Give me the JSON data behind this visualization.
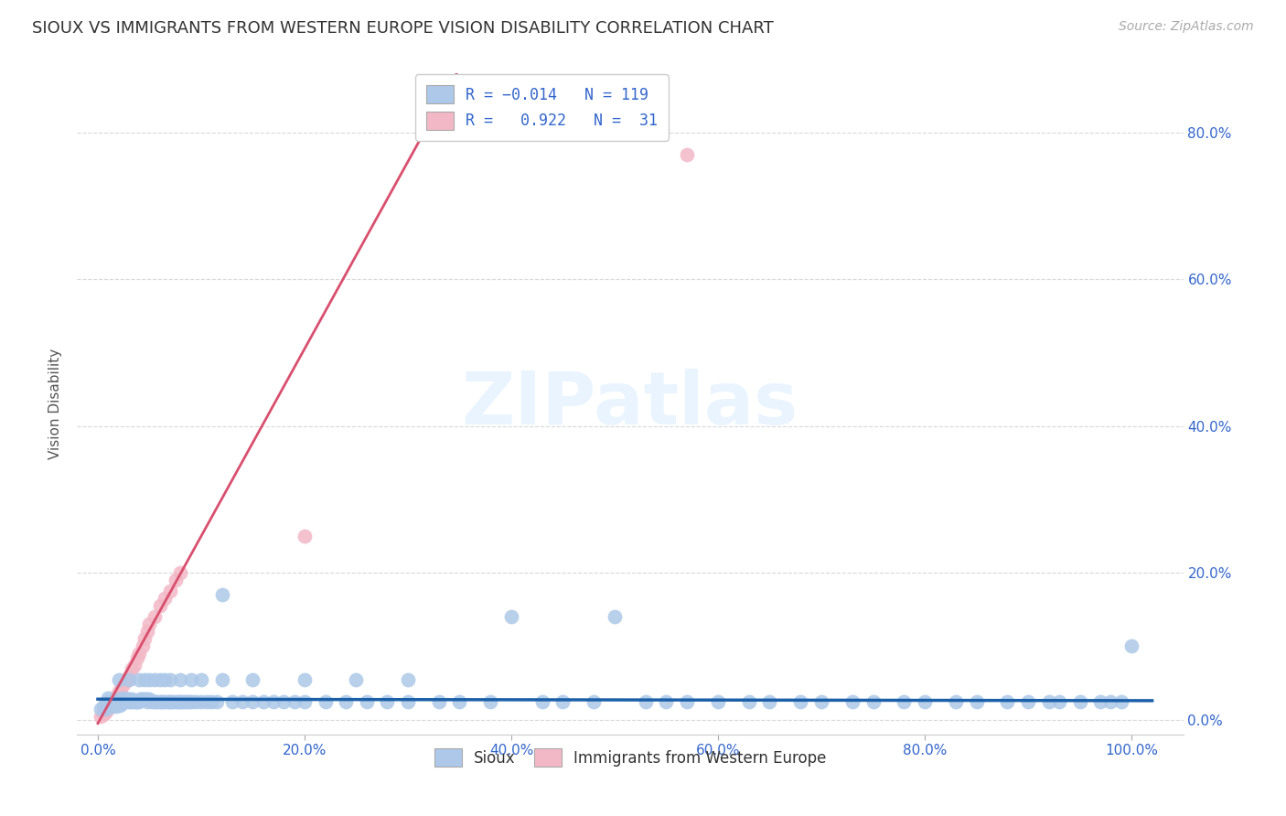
{
  "title": "SIOUX VS IMMIGRANTS FROM WESTERN EUROPE VISION DISABILITY CORRELATION CHART",
  "source": "Source: ZipAtlas.com",
  "ylabel": "Vision Disability",
  "xtick_vals": [
    0.0,
    0.2,
    0.4,
    0.6,
    0.8,
    1.0
  ],
  "xtick_labels": [
    "0.0%",
    "20.0%",
    "40.0%",
    "60.0%",
    "80.0%",
    "100.0%"
  ],
  "ytick_vals": [
    0.0,
    0.2,
    0.4,
    0.6,
    0.8
  ],
  "ytick_labels": [
    "0.0%",
    "20.0%",
    "40.0%",
    "60.0%",
    "80.0%"
  ],
  "xlim": [
    -0.02,
    1.05
  ],
  "ylim": [
    -0.02,
    0.88
  ],
  "title_fontsize": 13,
  "source_fontsize": 10,
  "watermark": "ZIPatlas",
  "sioux_color": "#adc8e8",
  "immigrants_color": "#f2b8c6",
  "sioux_line_color": "#1a5fa8",
  "immigrants_line_color": "#d94f6e",
  "grid_color": "#d8d8d8",
  "background_color": "#ffffff",
  "sioux_x": [
    0.003,
    0.005,
    0.007,
    0.008,
    0.01,
    0.01,
    0.01,
    0.012,
    0.013,
    0.015,
    0.015,
    0.016,
    0.018,
    0.019,
    0.02,
    0.02,
    0.021,
    0.022,
    0.023,
    0.025,
    0.025,
    0.027,
    0.028,
    0.03,
    0.03,
    0.032,
    0.033,
    0.035,
    0.037,
    0.038,
    0.04,
    0.041,
    0.043,
    0.045,
    0.047,
    0.048,
    0.05,
    0.052,
    0.055,
    0.057,
    0.06,
    0.062,
    0.065,
    0.068,
    0.07,
    0.072,
    0.075,
    0.078,
    0.08,
    0.082,
    0.085,
    0.088,
    0.09,
    0.095,
    0.1,
    0.105,
    0.11,
    0.115,
    0.12,
    0.13,
    0.14,
    0.15,
    0.16,
    0.17,
    0.18,
    0.19,
    0.2,
    0.22,
    0.24,
    0.26,
    0.28,
    0.3,
    0.33,
    0.35,
    0.38,
    0.4,
    0.43,
    0.45,
    0.48,
    0.5,
    0.53,
    0.55,
    0.57,
    0.6,
    0.63,
    0.65,
    0.68,
    0.7,
    0.73,
    0.75,
    0.78,
    0.8,
    0.83,
    0.85,
    0.88,
    0.9,
    0.92,
    0.93,
    0.95,
    0.97,
    0.98,
    0.99,
    1.0,
    0.02,
    0.03,
    0.04,
    0.045,
    0.05,
    0.055,
    0.06,
    0.065,
    0.07,
    0.08,
    0.09,
    0.1,
    0.12,
    0.15,
    0.2,
    0.25,
    0.3
  ],
  "sioux_y": [
    0.015,
    0.018,
    0.02,
    0.015,
    0.02,
    0.025,
    0.03,
    0.022,
    0.018,
    0.025,
    0.02,
    0.022,
    0.018,
    0.025,
    0.022,
    0.028,
    0.02,
    0.025,
    0.022,
    0.025,
    0.03,
    0.025,
    0.028,
    0.025,
    0.028,
    0.025,
    0.028,
    0.025,
    0.025,
    0.025,
    0.025,
    0.028,
    0.028,
    0.028,
    0.028,
    0.025,
    0.028,
    0.025,
    0.025,
    0.025,
    0.025,
    0.025,
    0.025,
    0.025,
    0.025,
    0.025,
    0.025,
    0.025,
    0.025,
    0.025,
    0.025,
    0.025,
    0.025,
    0.025,
    0.025,
    0.025,
    0.025,
    0.025,
    0.17,
    0.025,
    0.025,
    0.025,
    0.025,
    0.025,
    0.025,
    0.025,
    0.025,
    0.025,
    0.025,
    0.025,
    0.025,
    0.025,
    0.025,
    0.025,
    0.025,
    0.14,
    0.025,
    0.025,
    0.025,
    0.14,
    0.025,
    0.025,
    0.025,
    0.025,
    0.025,
    0.025,
    0.025,
    0.025,
    0.025,
    0.025,
    0.025,
    0.025,
    0.025,
    0.025,
    0.025,
    0.025,
    0.025,
    0.025,
    0.025,
    0.025,
    0.025,
    0.025,
    0.1,
    0.055,
    0.055,
    0.055,
    0.055,
    0.055,
    0.055,
    0.055,
    0.055,
    0.055,
    0.055,
    0.055,
    0.055,
    0.055,
    0.055,
    0.055,
    0.055,
    0.055
  ],
  "imm_x": [
    0.003,
    0.005,
    0.007,
    0.008,
    0.01,
    0.012,
    0.013,
    0.015,
    0.016,
    0.018,
    0.02,
    0.022,
    0.025,
    0.028,
    0.03,
    0.033,
    0.035,
    0.038,
    0.04,
    0.043,
    0.045,
    0.048,
    0.05,
    0.055,
    0.06,
    0.065,
    0.07,
    0.075,
    0.08,
    0.57,
    0.2
  ],
  "imm_y": [
    0.005,
    0.007,
    0.01,
    0.012,
    0.015,
    0.018,
    0.022,
    0.025,
    0.028,
    0.032,
    0.038,
    0.042,
    0.048,
    0.055,
    0.06,
    0.07,
    0.075,
    0.085,
    0.09,
    0.1,
    0.11,
    0.12,
    0.13,
    0.14,
    0.155,
    0.165,
    0.175,
    0.19,
    0.2,
    0.77,
    0.25
  ],
  "imm_line_x0": 0.0,
  "imm_line_y0": 0.0,
  "imm_line_slope": 2.55,
  "imm_line_intercept": -0.005,
  "imm_line_solid_end": 0.76,
  "imm_line_dash_end": 1.02,
  "sioux_line_y_intercept": 0.028,
  "sioux_line_slope": -0.002
}
